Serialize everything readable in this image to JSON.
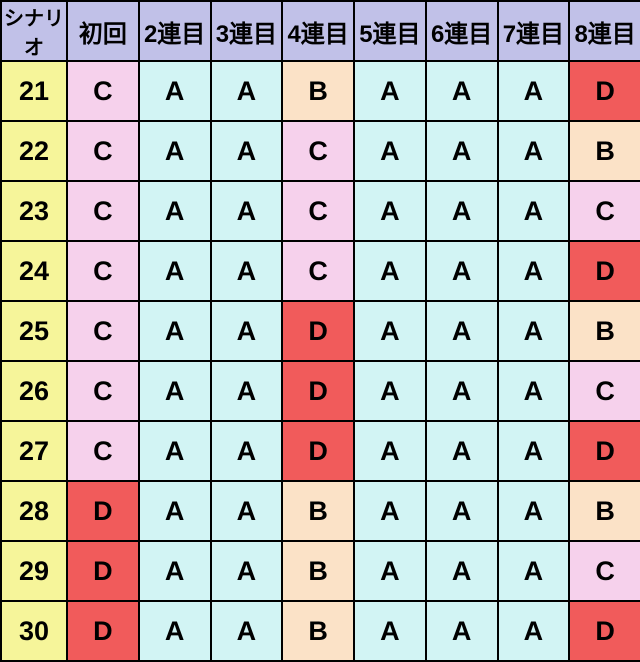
{
  "table": {
    "type": "table",
    "colors": {
      "border": "#000000",
      "header_bg": "#c1c1e8",
      "rowlabel_bg": "#f6f59a",
      "cell_A": "#d2f4f4",
      "cell_B": "#fbe2c7",
      "cell_C": "#f6d1ec",
      "cell_D": "#f15b5b",
      "text": "#000000"
    },
    "columns": [
      "シナリオ",
      "初回",
      "2連目",
      "3連目",
      "4連目",
      "5連目",
      "6連目",
      "7連目",
      "8連目"
    ],
    "row_labels": [
      "21",
      "22",
      "23",
      "24",
      "25",
      "26",
      "27",
      "28",
      "29",
      "30"
    ],
    "rows": [
      [
        "C",
        "A",
        "A",
        "B",
        "A",
        "A",
        "A",
        "D"
      ],
      [
        "C",
        "A",
        "A",
        "C",
        "A",
        "A",
        "A",
        "B"
      ],
      [
        "C",
        "A",
        "A",
        "C",
        "A",
        "A",
        "A",
        "C"
      ],
      [
        "C",
        "A",
        "A",
        "C",
        "A",
        "A",
        "A",
        "D"
      ],
      [
        "C",
        "A",
        "A",
        "D",
        "A",
        "A",
        "A",
        "B"
      ],
      [
        "C",
        "A",
        "A",
        "D",
        "A",
        "A",
        "A",
        "C"
      ],
      [
        "C",
        "A",
        "A",
        "D",
        "A",
        "A",
        "A",
        "D"
      ],
      [
        "D",
        "A",
        "A",
        "B",
        "A",
        "A",
        "A",
        "B"
      ],
      [
        "D",
        "A",
        "A",
        "B",
        "A",
        "A",
        "A",
        "C"
      ],
      [
        "D",
        "A",
        "A",
        "B",
        "A",
        "A",
        "A",
        "D"
      ]
    ]
  }
}
